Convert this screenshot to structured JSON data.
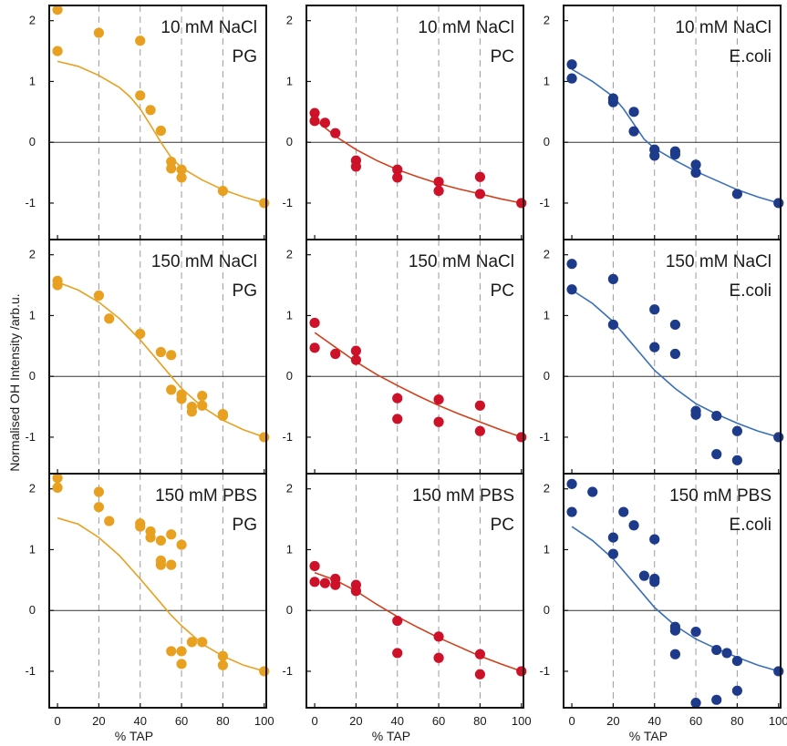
{
  "y_axis_label": "Normalised OH Intensity /arb.u.",
  "x_axis_label": "% TAP",
  "colors": {
    "PG": "#E8A020",
    "PC": "#CC1128",
    "E.coli": "#1E3A8A",
    "fit_PG": "#E8A020",
    "fit_PC": "#D0401C",
    "fit_Ecoli": "#3A6FB8"
  },
  "x_ticks": [
    0,
    20,
    40,
    60,
    80,
    100
  ],
  "x_tick_labels": [
    "0",
    "20",
    "40",
    "60",
    "80",
    "100"
  ],
  "y_ticks": [
    -1,
    0,
    1,
    2
  ],
  "y_tick_labels": [
    "-1",
    "0",
    "1",
    "2"
  ],
  "x_grid": [
    20,
    40,
    60,
    80
  ],
  "chart_data": [
    {
      "type": "scatter",
      "row": 0,
      "col": 0,
      "salt": "10 mM NaCl",
      "lipid": "PG",
      "color": "#E8A020",
      "fit_color": "#E8A020",
      "x": [
        0,
        0,
        20,
        40,
        40,
        45,
        50,
        55,
        55,
        60,
        60,
        80,
        100
      ],
      "y": [
        2.18,
        1.5,
        1.8,
        1.67,
        0.77,
        0.53,
        0.19,
        -0.32,
        -0.43,
        -0.45,
        -0.58,
        -0.8,
        -1.0
      ],
      "fit": {
        "x": [
          0,
          10,
          20,
          30,
          35,
          40,
          45,
          50,
          55,
          60,
          70,
          80,
          90,
          100
        ],
        "y": [
          1.33,
          1.25,
          1.1,
          0.9,
          0.75,
          0.55,
          0.28,
          0.0,
          -0.25,
          -0.42,
          -0.62,
          -0.78,
          -0.9,
          -1.0
        ]
      }
    },
    {
      "type": "scatter",
      "row": 0,
      "col": 1,
      "salt": "10 mM NaCl",
      "lipid": "PC",
      "color": "#CC1128",
      "fit_color": "#D0401C",
      "x": [
        0,
        0,
        5,
        10,
        20,
        20,
        40,
        40,
        60,
        60,
        80,
        80,
        100
      ],
      "y": [
        0.48,
        0.35,
        0.32,
        0.15,
        -0.3,
        -0.4,
        -0.45,
        -0.58,
        -0.65,
        -0.8,
        -0.57,
        -0.85,
        -1.0
      ],
      "fit": {
        "x": [
          0,
          10,
          20,
          30,
          40,
          50,
          60,
          70,
          80,
          90,
          100
        ],
        "y": [
          0.38,
          0.1,
          -0.12,
          -0.3,
          -0.45,
          -0.57,
          -0.68,
          -0.77,
          -0.85,
          -0.93,
          -1.0
        ]
      }
    },
    {
      "type": "scatter",
      "row": 0,
      "col": 2,
      "salt": "10 mM NaCl",
      "lipid": "E.coli",
      "color": "#1E3A8A",
      "fit_color": "#3A6FB8",
      "x": [
        0,
        0,
        20,
        20,
        30,
        30,
        40,
        40,
        50,
        50,
        60,
        60,
        80,
        100
      ],
      "y": [
        1.28,
        1.05,
        0.72,
        0.66,
        0.5,
        0.18,
        -0.12,
        -0.22,
        -0.15,
        -0.2,
        -0.37,
        -0.5,
        -0.85,
        -1.0
      ],
      "fit": {
        "x": [
          0,
          10,
          20,
          25,
          30,
          35,
          40,
          50,
          60,
          70,
          80,
          90,
          100
        ],
        "y": [
          1.2,
          1.0,
          0.75,
          0.55,
          0.3,
          0.05,
          -0.1,
          -0.3,
          -0.48,
          -0.63,
          -0.78,
          -0.9,
          -1.0
        ]
      }
    },
    {
      "type": "scatter",
      "row": 1,
      "col": 0,
      "salt": "150 mM NaCl",
      "lipid": "PG",
      "color": "#E8A020",
      "fit_color": "#E8A020",
      "x": [
        0,
        0,
        20,
        25,
        40,
        50,
        55,
        55,
        60,
        60,
        65,
        65,
        70,
        70,
        80,
        80,
        100
      ],
      "y": [
        1.57,
        1.5,
        1.33,
        0.95,
        0.7,
        0.4,
        0.35,
        -0.22,
        -0.3,
        -0.37,
        -0.5,
        -0.58,
        -0.32,
        -0.48,
        -0.62,
        -0.65,
        -1.0
      ],
      "fit": {
        "x": [
          0,
          10,
          20,
          30,
          40,
          50,
          55,
          60,
          70,
          80,
          90,
          100
        ],
        "y": [
          1.55,
          1.42,
          1.22,
          0.95,
          0.6,
          0.2,
          0.0,
          -0.2,
          -0.5,
          -0.72,
          -0.88,
          -1.0
        ]
      }
    },
    {
      "type": "scatter",
      "row": 1,
      "col": 1,
      "salt": "150 mM NaCl",
      "lipid": "PC",
      "color": "#CC1128",
      "fit_color": "#D0401C",
      "x": [
        0,
        0,
        10,
        20,
        20,
        40,
        40,
        60,
        60,
        80,
        80,
        100
      ],
      "y": [
        0.88,
        0.47,
        0.37,
        0.42,
        0.27,
        -0.36,
        -0.7,
        -0.38,
        -0.75,
        -0.48,
        -0.9,
        -1.0
      ],
      "fit": {
        "x": [
          0,
          10,
          20,
          30,
          40,
          50,
          60,
          70,
          80,
          90,
          100
        ],
        "y": [
          0.72,
          0.48,
          0.24,
          0.03,
          -0.15,
          -0.32,
          -0.48,
          -0.62,
          -0.75,
          -0.88,
          -1.0
        ]
      }
    },
    {
      "type": "scatter",
      "row": 1,
      "col": 2,
      "salt": "150 mM NaCl",
      "lipid": "E.coli",
      "color": "#1E3A8A",
      "fit_color": "#3A6FB8",
      "x": [
        0,
        0,
        20,
        20,
        40,
        40,
        50,
        50,
        60,
        60,
        70,
        70,
        80,
        80,
        100
      ],
      "y": [
        1.85,
        1.43,
        1.6,
        0.85,
        1.1,
        0.48,
        0.85,
        0.37,
        -0.57,
        -0.63,
        -0.65,
        -1.28,
        -0.9,
        -1.38,
        -1.0
      ],
      "fit": {
        "x": [
          0,
          10,
          20,
          30,
          40,
          50,
          60,
          70,
          80,
          90,
          100
        ],
        "y": [
          1.42,
          1.2,
          0.9,
          0.5,
          0.1,
          -0.2,
          -0.45,
          -0.62,
          -0.77,
          -0.9,
          -1.0
        ]
      }
    },
    {
      "type": "scatter",
      "row": 2,
      "col": 0,
      "salt": "150 mM PBS",
      "lipid": "PG",
      "color": "#E8A020",
      "fit_color": "#E8A020",
      "x": [
        0,
        0,
        20,
        20,
        25,
        40,
        40,
        45,
        45,
        50,
        50,
        50,
        55,
        55,
        55,
        60,
        60,
        60,
        65,
        70,
        80,
        80,
        100
      ],
      "y": [
        2.18,
        2.02,
        1.95,
        1.7,
        1.47,
        1.43,
        1.38,
        1.3,
        1.2,
        1.15,
        0.82,
        0.75,
        1.25,
        0.75,
        -0.67,
        1.08,
        -0.67,
        -0.88,
        -0.52,
        -0.52,
        -0.75,
        -0.9,
        -1.0
      ],
      "fit": {
        "x": [
          0,
          10,
          20,
          30,
          40,
          50,
          55,
          60,
          70,
          80,
          90,
          100
        ],
        "y": [
          1.52,
          1.42,
          1.2,
          0.9,
          0.52,
          0.12,
          -0.08,
          -0.25,
          -0.55,
          -0.75,
          -0.9,
          -1.0
        ]
      }
    },
    {
      "type": "scatter",
      "row": 2,
      "col": 1,
      "salt": "150 mM PBS",
      "lipid": "PC",
      "color": "#CC1128",
      "fit_color": "#D0401C",
      "x": [
        0,
        0,
        5,
        10,
        10,
        20,
        20,
        40,
        40,
        60,
        60,
        80,
        80,
        100
      ],
      "y": [
        0.73,
        0.47,
        0.45,
        0.52,
        0.42,
        0.42,
        0.32,
        -0.17,
        -0.7,
        -0.43,
        -0.78,
        -0.72,
        -1.05,
        -1.0
      ],
      "fit": {
        "x": [
          0,
          10,
          20,
          30,
          40,
          50,
          60,
          70,
          80,
          90,
          100
        ],
        "y": [
          0.62,
          0.5,
          0.32,
          0.1,
          -0.1,
          -0.28,
          -0.45,
          -0.6,
          -0.75,
          -0.88,
          -1.0
        ]
      }
    },
    {
      "type": "scatter",
      "row": 2,
      "col": 2,
      "salt": "150 mM PBS",
      "lipid": "E.coli",
      "color": "#1E3A8A",
      "fit_color": "#3A6FB8",
      "x": [
        0,
        0,
        10,
        20,
        20,
        25,
        30,
        35,
        40,
        40,
        40,
        50,
        50,
        50,
        60,
        60,
        70,
        70,
        75,
        80,
        80,
        100
      ],
      "y": [
        2.08,
        1.62,
        1.95,
        1.2,
        0.93,
        1.62,
        1.4,
        0.57,
        1.17,
        0.52,
        0.47,
        -0.27,
        -0.33,
        -0.72,
        -0.35,
        -1.52,
        -0.65,
        -1.47,
        -0.7,
        -0.83,
        -1.32,
        -1.0
      ],
      "fit": {
        "x": [
          0,
          10,
          20,
          30,
          40,
          50,
          60,
          70,
          80,
          90,
          100
        ],
        "y": [
          1.38,
          1.15,
          0.85,
          0.45,
          0.05,
          -0.25,
          -0.47,
          -0.63,
          -0.77,
          -0.9,
          -1.0
        ]
      }
    }
  ]
}
